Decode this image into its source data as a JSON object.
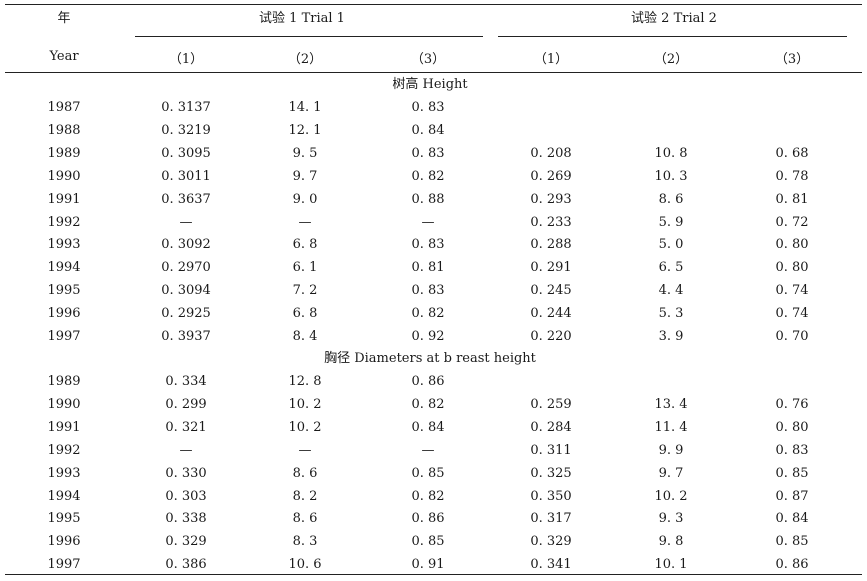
{
  "header": {
    "year_cn": "年",
    "year_en": "Year",
    "trial1": "试验 1 Trial 1",
    "trial2": "试验 2 Trial 2",
    "cols": [
      "（1）",
      "（2）",
      "（3）",
      "（1）",
      "（2）",
      "（3）"
    ]
  },
  "sections": [
    {
      "label": "树高    Height",
      "rows": [
        [
          "1987",
          "0. 3137",
          "14. 1",
          "0. 83",
          "",
          "",
          ""
        ],
        [
          "1988",
          "0. 3219",
          "12. 1",
          "0. 84",
          "",
          "",
          ""
        ],
        [
          "1989",
          "0. 3095",
          "9. 5",
          "0. 83",
          "0. 208",
          "10. 8",
          "0. 68"
        ],
        [
          "1990",
          "0. 3011",
          "9. 7",
          "0. 82",
          "0. 269",
          "10. 3",
          "0. 78"
        ],
        [
          "1991",
          "0. 3637",
          "9. 0",
          "0. 88",
          "0. 293",
          "8. 6",
          "0. 81"
        ],
        [
          "1992",
          "—",
          "—",
          "—",
          "0. 233",
          "5. 9",
          "0. 72"
        ],
        [
          "1993",
          "0. 3092",
          "6. 8",
          "0. 83",
          "0. 288",
          "5. 0",
          "0. 80"
        ],
        [
          "1994",
          "0. 2970",
          "6. 1",
          "0. 81",
          "0. 291",
          "6. 5",
          "0. 80"
        ],
        [
          "1995",
          "0. 3094",
          "7. 2",
          "0. 83",
          "0. 245",
          "4. 4",
          "0. 74"
        ],
        [
          "1996",
          "0. 2925",
          "6. 8",
          "0. 82",
          "0. 244",
          "5. 3",
          "0. 74"
        ],
        [
          "1997",
          "0. 3937",
          "8. 4",
          "0. 92",
          "0. 220",
          "3. 9",
          "0. 70"
        ]
      ]
    },
    {
      "label": "胸径 Diameters at b reast height",
      "rows": [
        [
          "1989",
          "0. 334",
          "12. 8",
          "0. 86",
          "",
          "",
          ""
        ],
        [
          "1990",
          "0. 299",
          "10. 2",
          "0. 82",
          "0. 259",
          "13. 4",
          "0. 76"
        ],
        [
          "1991",
          "0. 321",
          "10. 2",
          "0. 84",
          "0. 284",
          "11. 4",
          "0. 80"
        ],
        [
          "1992",
          "—",
          "—",
          "—",
          "0. 311",
          "9. 9",
          "0. 83"
        ],
        [
          "1993",
          "0. 330",
          "8. 6",
          "0. 85",
          "0. 325",
          "9. 7",
          "0. 85"
        ],
        [
          "1994",
          "0. 303",
          "8. 2",
          "0. 82",
          "0. 350",
          "10. 2",
          "0. 87"
        ],
        [
          "1995",
          "0. 338",
          "8. 6",
          "0. 86",
          "0. 317",
          "9. 3",
          "0. 84"
        ],
        [
          "1996",
          "0. 329",
          "8. 3",
          "0. 85",
          "0. 329",
          "9. 8",
          "0. 85"
        ],
        [
          "1997",
          "0. 386",
          "10. 6",
          "0. 91",
          "0. 341",
          "10. 1",
          "0. 86"
        ]
      ]
    }
  ]
}
